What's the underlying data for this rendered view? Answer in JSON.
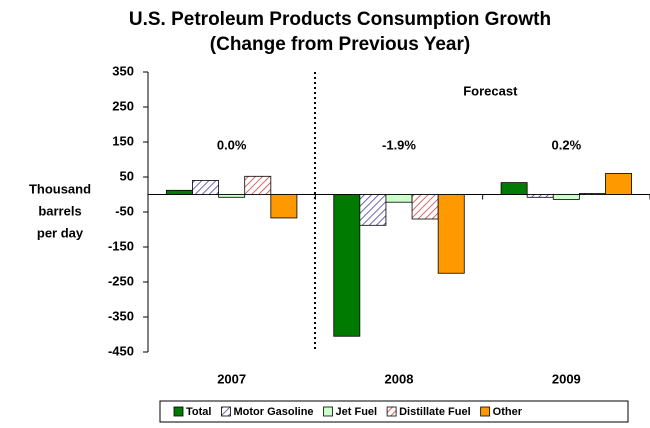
{
  "chart_data": {
    "type": "bar",
    "title": [
      "U.S. Petroleum Products Consumption Growth",
      "(Change from Previous Year)"
    ],
    "y_label": [
      "Thousand",
      "barrels",
      "per day"
    ],
    "categories": [
      "2007",
      "2008",
      "2009"
    ],
    "category_notes": [
      "0.0%",
      "-1.9%",
      "0.2%"
    ],
    "forecast_label": "Forecast",
    "series": [
      {
        "name": "Total",
        "color": "#007a00",
        "hatch": false,
        "values": [
          12,
          -405,
          34
        ]
      },
      {
        "name": "Motor Gasoline",
        "color": "#333399",
        "hatch": true,
        "values": [
          40,
          -88,
          -8
        ]
      },
      {
        "name": "Jet Fuel",
        "color": "#ccffcc",
        "hatch": false,
        "values": [
          -8,
          -22,
          -14
        ]
      },
      {
        "name": "Distillate Fuel",
        "color": "#cc3333",
        "hatch": true,
        "values": [
          52,
          -70,
          3
        ]
      },
      {
        "name": "Other",
        "color": "#ff9900",
        "hatch": false,
        "values": [
          -67,
          -225,
          60
        ]
      }
    ],
    "ylim": [
      -450,
      350
    ],
    "yticks": [
      -450,
      -350,
      -250,
      -150,
      -50,
      50,
      150,
      250,
      350
    ]
  }
}
